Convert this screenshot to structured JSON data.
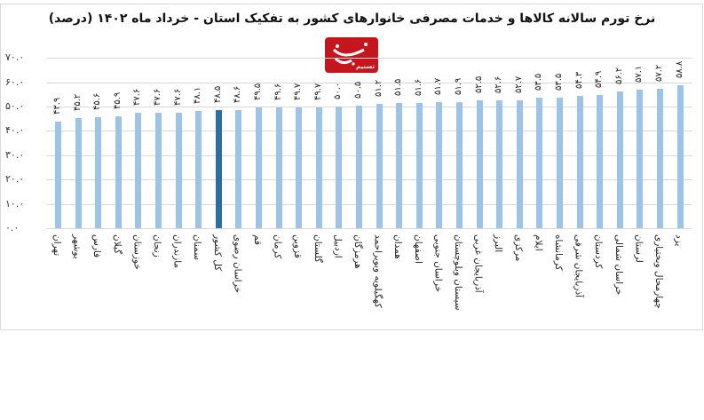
{
  "header": {
    "title": "نرخ تورم سالانه کالاها و خدمات مصرفی خانوارهای کشور به تفکیک استان - خرداد ماه ۱۴۰۲ (درصد)",
    "logo_text": "تسنیم",
    "logo_icon": "tasnim-logo-icon"
  },
  "colors": {
    "bar": "#9dc3e6",
    "highlight_bar": "#2e6da4",
    "grid": "#d9d9d9",
    "logo": "#c4161c"
  },
  "y_axis": {
    "ticks": [
      "۷۰.۰",
      "۶۰.۰",
      "۵۰.۰",
      "۴۰.۰",
      "۳۰.۰",
      "۲۰.۰",
      "۱۰.۰",
      "۰.۰"
    ]
  },
  "chart_data": {
    "type": "bar",
    "title": "نرخ تورم سالانه کالاها و خدمات مصرفی خانوارهای کشور به تفکیک استان - خرداد ماه ۱۴۰۲ (درصد)",
    "xlabel": "",
    "ylabel": "",
    "ylim": [
      0,
      70
    ],
    "yticks": [
      0,
      10,
      20,
      30,
      40,
      50,
      60,
      70
    ],
    "grid": true,
    "legend": null,
    "highlight_category": "کل کشور",
    "categories": [
      "تهران",
      "بوشهر",
      "فارس",
      "گیلان",
      "خوزستان",
      "زنجان",
      "مازندران",
      "سمنان",
      "کل کشور",
      "خراسان رضوی",
      "قم",
      "کرمان",
      "قزوین",
      "گلستان",
      "اردبیل",
      "هرمزگان",
      "کهگیلویه وبویراحمد",
      "همدان",
      "اصفهان",
      "خراسان جنوبی",
      "سیستان وبلوچستان",
      "آذربایجان غربی",
      "البرز",
      "مرکزی",
      "ایلام",
      "کرمانشاه",
      "آذربایجان شرقی",
      "کردستان",
      "خراسان شمالی",
      "لرستان",
      "چهارمحال وبختیاری",
      "یزد"
    ],
    "values": [
      43.9,
      45.2,
      45.6,
      45.9,
      47.6,
      47.6,
      47.6,
      48.1,
      48.5,
      48.6,
      49.5,
      49.6,
      49.7,
      49.7,
      50.0,
      50.5,
      51.2,
      51.5,
      51.6,
      51.7,
      51.9,
      52.5,
      52.6,
      52.7,
      53.5,
      53.5,
      54.3,
      54.9,
      56.2,
      57.1,
      57.2,
      58.8
    ],
    "value_labels": [
      "۴۳.۹",
      "۴۵.۲",
      "۴۵.۶",
      "۴۵.۹",
      "۴۷.۶",
      "۴۷.۶",
      "۴۷.۶",
      "۴۸.۱",
      "۴۸.۵",
      "۴۸.۶",
      "۴۹.۵",
      "۴۹.۶",
      "۴۹.۷",
      "۴۹.۷",
      "۵۰.۰",
      "۵۰.۵",
      "۵۱.۲",
      "۵۱.۵",
      "۵۱.۶",
      "۵۱.۷",
      "۵۱.۹",
      "۵۲.۵",
      "۵۲.۶",
      "۵۲.۷",
      "۵۳.۵",
      "۵۳.۵",
      "۵۴.۳",
      "۵۴.۹",
      "۵۶.۲",
      "۵۷.۱",
      "۵۷.۲",
      "۵۸.۸"
    ]
  }
}
